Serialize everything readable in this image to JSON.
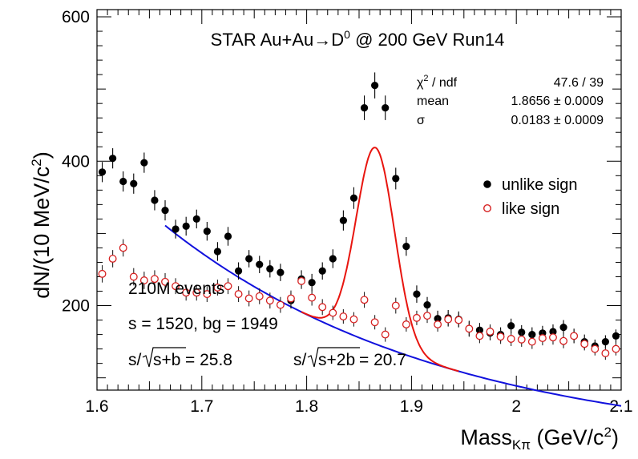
{
  "chart_data": {
    "type": "scatter",
    "title": "STAR Au+Au→D",
    "title_sup": "0",
    "title_rest": " @ 200 GeV Run14",
    "ylabel": "dN/(10 MeV/c",
    "ylabel_sup": "2",
    "ylabel_end": ")",
    "xlabel": "Mass",
    "xlabel_sub": "Kπ",
    "xlabel_end": " (GeV/c",
    "xlabel_sup": "2",
    "xlabel_close": ")",
    "xlim": [
      1.6,
      2.1
    ],
    "ylim": [
      83,
      610
    ],
    "x_ticks": [
      "1.6",
      "1.7",
      "1.8",
      "1.9",
      "2",
      "2.1"
    ],
    "y_ticks": [
      "200",
      "400",
      "600"
    ],
    "stats": {
      "chi2_label": "χ",
      "chi2_label_sup": "2",
      "chi2_label_rest": " / ndf",
      "chi2_value": "47.6 / 39",
      "mean_label": "mean",
      "mean_value": "1.8656 ± 0.0009",
      "sigma_label": "σ",
      "sigma_value": "0.0183 ± 0.0009"
    },
    "legend": [
      {
        "label": "unlike sign",
        "marker": "filled",
        "color": "#000000"
      },
      {
        "label": "like sign",
        "marker": "open",
        "color": "#d62020"
      }
    ],
    "annotations": {
      "events": "210M events",
      "counts": "s = 1520,  bg = 1949",
      "sig1_prefix": "s/",
      "sig1_root": "s+b",
      "sig1_value": " = 25.8",
      "sig2_prefix": "s/",
      "sig2_root": "s+2b",
      "sig2_value": " = 20.7"
    },
    "series": [
      {
        "name": "unlike sign",
        "x": [
          1.605,
          1.615,
          1.625,
          1.635,
          1.645,
          1.655,
          1.665,
          1.675,
          1.685,
          1.695,
          1.705,
          1.715,
          1.725,
          1.735,
          1.745,
          1.755,
          1.765,
          1.775,
          1.785,
          1.795,
          1.805,
          1.815,
          1.825,
          1.835,
          1.845,
          1.855,
          1.865,
          1.875,
          1.885,
          1.895,
          1.905,
          1.915,
          1.925,
          1.935,
          1.945,
          1.955,
          1.965,
          1.975,
          1.985,
          1.995,
          2.005,
          2.015,
          2.025,
          2.035,
          2.045,
          2.055,
          2.065,
          2.075,
          2.085,
          2.095
        ],
        "y": [
          385,
          404,
          372,
          369,
          398,
          346,
          332,
          306,
          310,
          320,
          303,
          275,
          296,
          248,
          265,
          257,
          251,
          246,
          207,
          237,
          232,
          248,
          265,
          318,
          349,
          474,
          505,
          474,
          376,
          282,
          216,
          201,
          182,
          183,
          181,
          168,
          166,
          162,
          160,
          172,
          163,
          160,
          162,
          164,
          170,
          158,
          150,
          144,
          150,
          158
        ],
        "err": [
          14,
          14,
          14,
          14,
          14,
          14,
          14,
          13,
          13,
          13,
          13,
          13,
          13,
          12,
          12,
          12,
          12,
          12,
          11,
          12,
          12,
          12,
          13,
          14,
          15,
          17,
          18,
          17,
          15,
          13,
          12,
          11,
          11,
          11,
          11,
          11,
          10,
          10,
          10,
          10,
          10,
          10,
          10,
          10,
          10,
          10,
          10,
          9,
          9,
          9
        ]
      },
      {
        "name": "like sign",
        "x": [
          1.605,
          1.615,
          1.625,
          1.635,
          1.645,
          1.655,
          1.665,
          1.675,
          1.685,
          1.695,
          1.705,
          1.715,
          1.725,
          1.735,
          1.745,
          1.755,
          1.765,
          1.775,
          1.785,
          1.795,
          1.805,
          1.815,
          1.825,
          1.835,
          1.845,
          1.855,
          1.865,
          1.875,
          1.885,
          1.895,
          1.905,
          1.915,
          1.925,
          1.935,
          1.945,
          1.955,
          1.965,
          1.975,
          1.985,
          1.995,
          2.005,
          2.015,
          2.025,
          2.035,
          2.045,
          2.055,
          2.065,
          2.075,
          2.085,
          2.095
        ],
        "y": [
          244,
          265,
          280,
          240,
          235,
          237,
          233,
          227,
          218,
          218,
          216,
          225,
          227,
          216,
          210,
          213,
          207,
          201,
          210,
          234,
          211,
          198,
          190,
          185,
          181,
          208,
          177,
          160,
          200,
          174,
          183,
          186,
          174,
          181,
          180,
          168,
          158,
          164,
          157,
          154,
          153,
          150,
          155,
          156,
          151,
          158,
          147,
          140,
          134,
          140
        ],
        "err": [
          12,
          12,
          12,
          12,
          12,
          12,
          12,
          11,
          11,
          11,
          11,
          11,
          11,
          11,
          11,
          11,
          11,
          11,
          11,
          11,
          11,
          11,
          10,
          10,
          10,
          11,
          10,
          10,
          11,
          10,
          10,
          10,
          10,
          10,
          10,
          10,
          10,
          10,
          10,
          10,
          10,
          10,
          10,
          10,
          10,
          10,
          9,
          9,
          9,
          9
        ]
      }
    ],
    "fit": {
      "signal_color": "#e8150f",
      "background_color": "#1111dd",
      "signal_amplitude": 272,
      "mean": 1.8656,
      "sigma": 0.0183,
      "background": {
        "x0": 1.665,
        "x1": 2.1,
        "a": 311,
        "k": 3.74
      }
    }
  }
}
